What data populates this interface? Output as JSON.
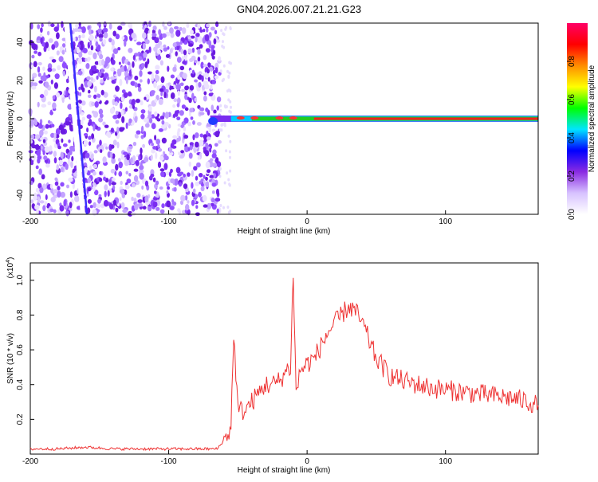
{
  "title": "GN04.2026.007.21.21.G23",
  "chart_data": [
    {
      "type": "heatmap",
      "xlabel": "Height of straight line (km)",
      "ylabel": "Frequency (Hz)",
      "xlim": [
        -200,
        167
      ],
      "ylim": [
        -50,
        50
      ],
      "xticks": [
        "-200",
        "-100",
        "0",
        "100"
      ],
      "yticks": [
        "-40",
        "-20",
        "0",
        "20",
        "40"
      ],
      "colorbar": {
        "label": "Normalized spectral amplitude",
        "range": [
          0,
          1
        ],
        "ticks": [
          "0.0",
          "0.2",
          "0.4",
          "0.6",
          "0.8"
        ],
        "colors": [
          "#ffffff",
          "#d7c2ff",
          "#8a2be2",
          "#0000ff",
          "#00e5ff",
          "#00ff00",
          "#ffff00",
          "#ff8c00",
          "#ff0000",
          "#ff0066"
        ]
      },
      "features": {
        "noise_region_x": [
          -200,
          -63
        ],
        "signal_line_x": [
          -70,
          167
        ],
        "signal_frequency_hz": 0,
        "streak": {
          "x_start": -174,
          "x_end": -162,
          "y_start": 50,
          "y_end": -50
        }
      },
      "grid": false
    },
    {
      "type": "line",
      "xlabel": "Height of straight line (km)",
      "ylabel": "SNR (10 * v/v)",
      "ylabel_multiplier": "(x10",
      "ylabel_multiplier_exp": "4",
      "ylabel_multiplier_close": ")",
      "xlim": [
        -200,
        167
      ],
      "ylim": [
        0,
        1.1
      ],
      "xticks": [
        "-200",
        "-100",
        "0",
        "100"
      ],
      "yticks": [
        "0.2",
        "0.4",
        "0.6",
        "0.8",
        "1.0"
      ],
      "series_color": "#ee3333",
      "series": [
        {
          "x": [
            -200,
            -180,
            -160,
            -140,
            -120,
            -100,
            -80,
            -65,
            -60,
            -55,
            -53,
            -50,
            -45,
            -40,
            -35,
            -30,
            -25,
            -20,
            -15,
            -12,
            -10,
            -8,
            -5,
            0,
            5,
            10,
            15,
            20,
            25,
            30,
            35,
            40,
            45,
            50,
            60,
            70,
            80,
            90,
            100,
            110,
            120,
            130,
            140,
            150,
            160,
            167
          ],
          "y": [
            0.03,
            0.03,
            0.04,
            0.03,
            0.03,
            0.03,
            0.03,
            0.03,
            0.08,
            0.15,
            0.7,
            0.25,
            0.25,
            0.3,
            0.35,
            0.4,
            0.4,
            0.42,
            0.48,
            0.5,
            1.05,
            0.35,
            0.48,
            0.52,
            0.55,
            0.62,
            0.7,
            0.75,
            0.8,
            0.85,
            0.82,
            0.75,
            0.65,
            0.55,
            0.45,
            0.42,
            0.4,
            0.38,
            0.37,
            0.36,
            0.35,
            0.34,
            0.33,
            0.32,
            0.3,
            0.28
          ]
        }
      ],
      "grid": false
    }
  ]
}
